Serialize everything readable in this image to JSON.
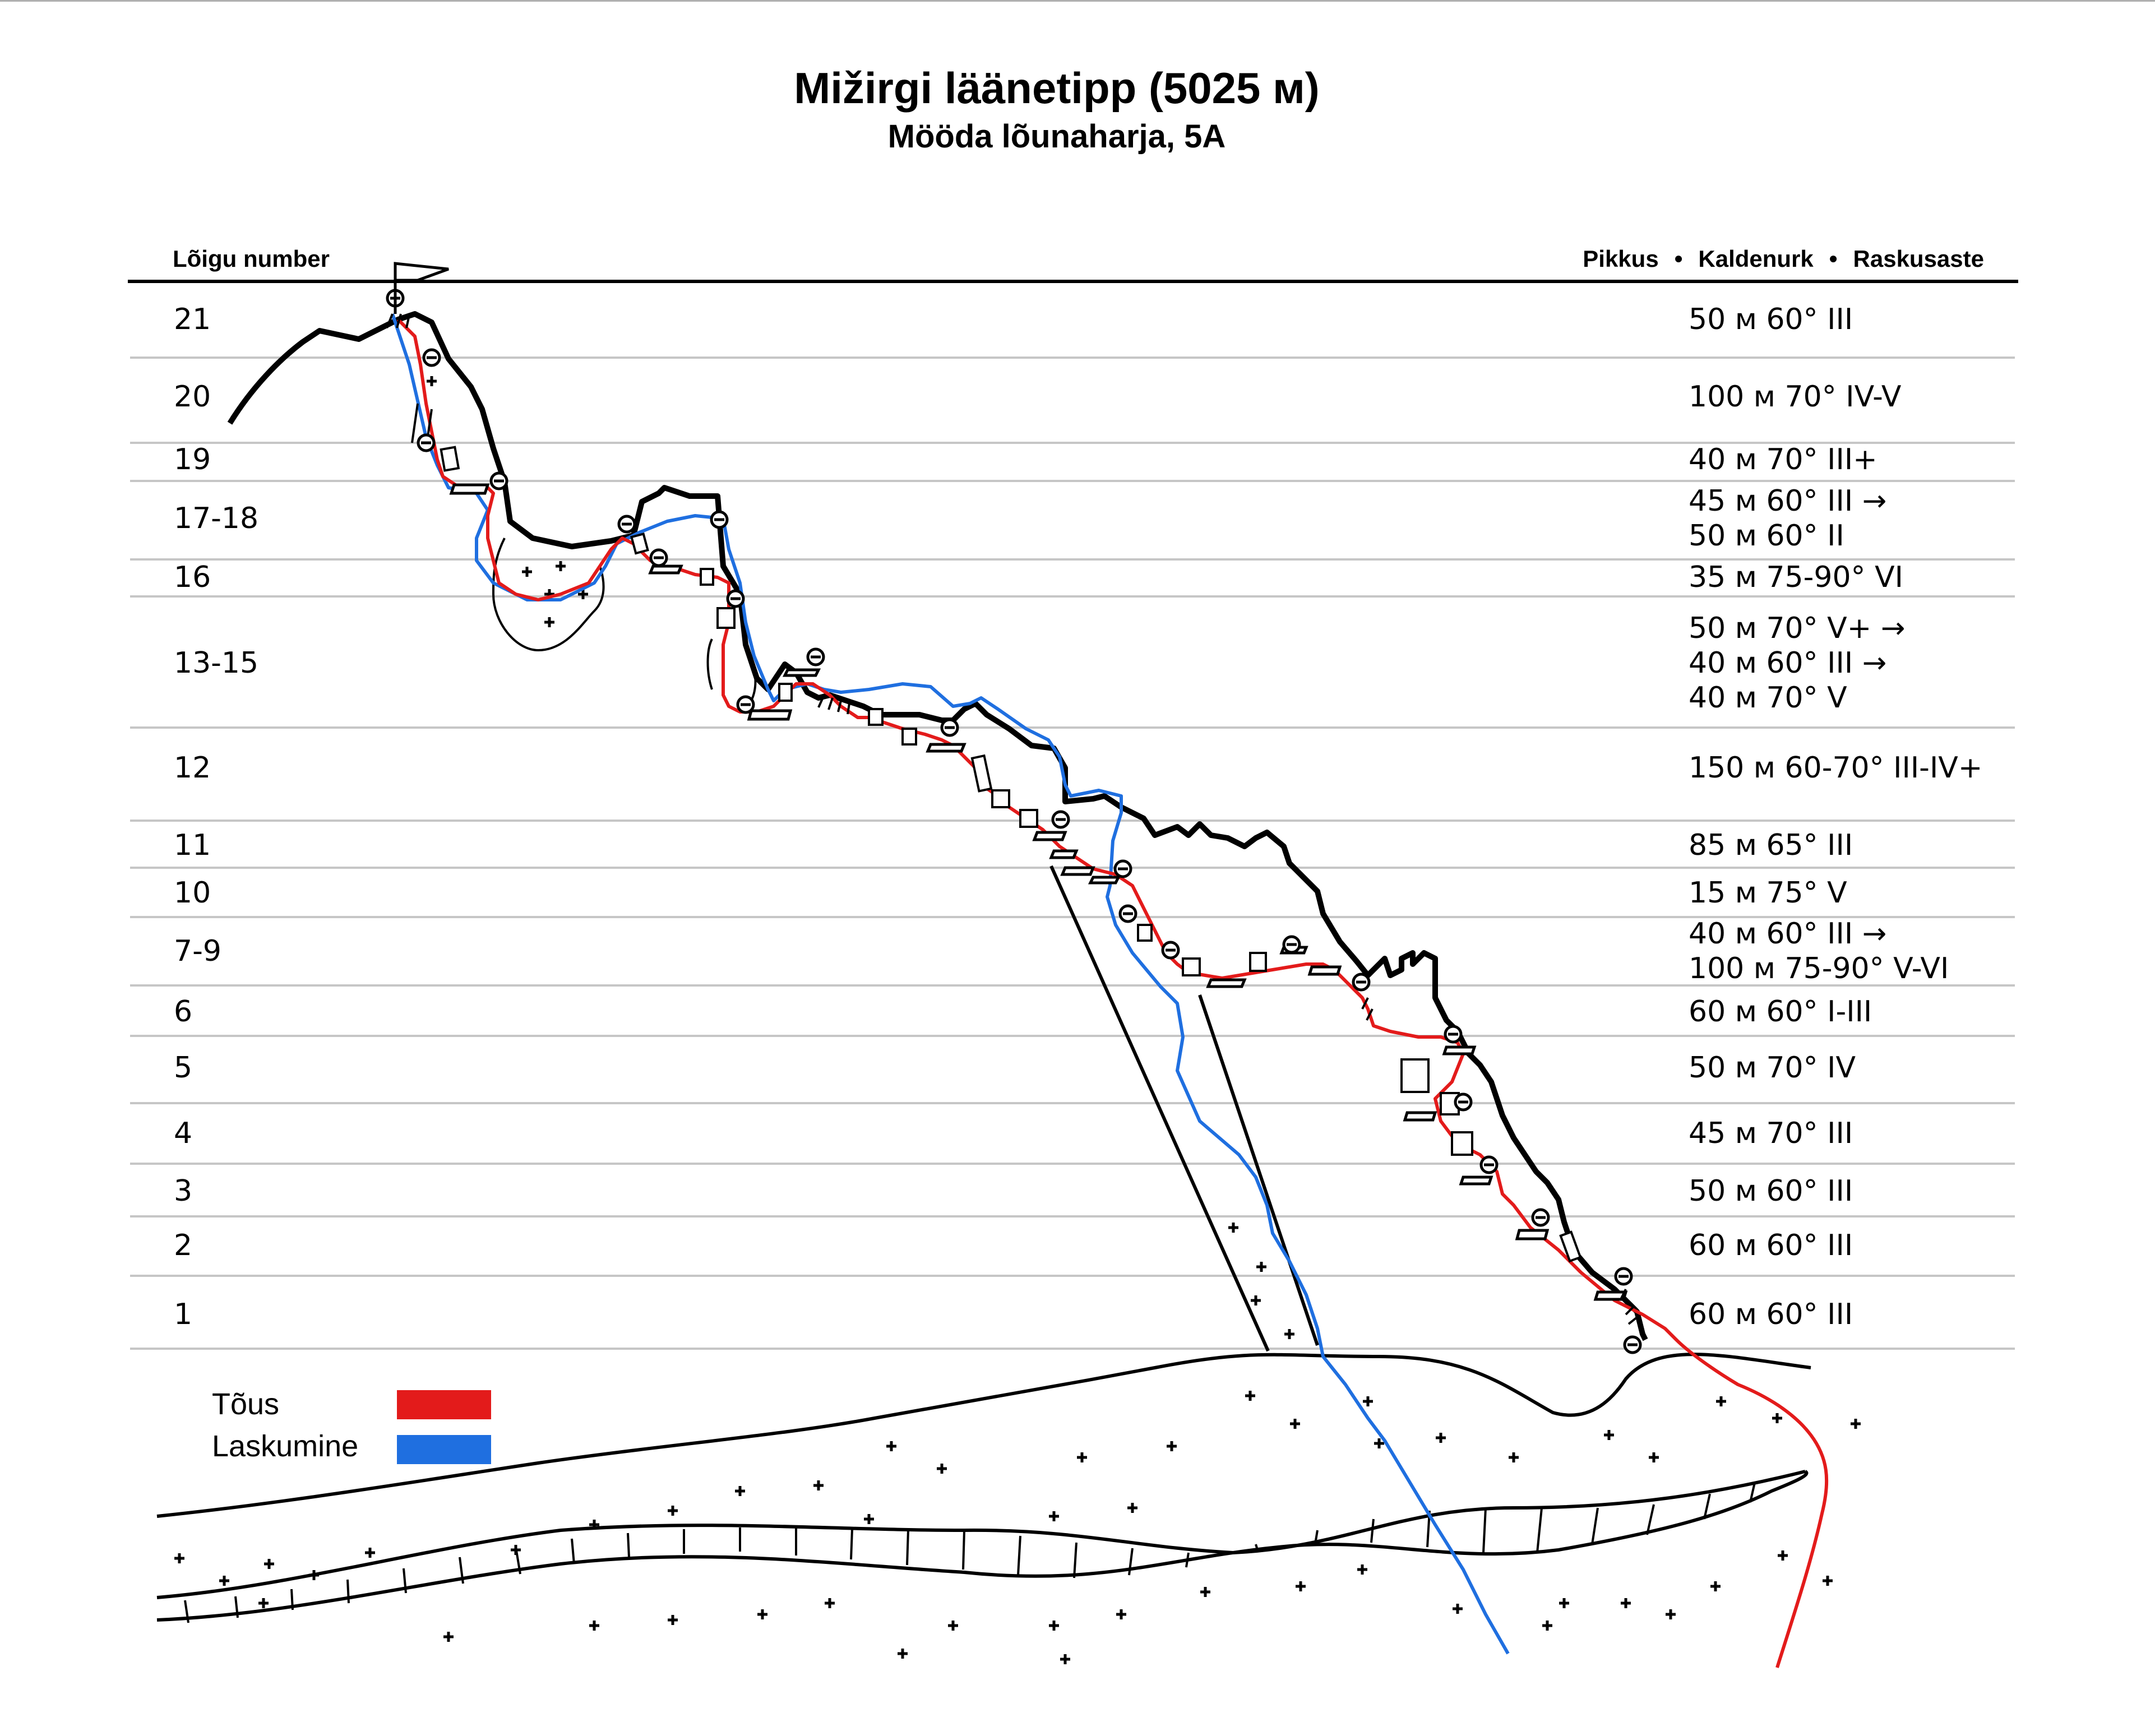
{
  "title": "Mižirgi läänetipp (5025 м)",
  "subtitle": "Mööda lõunaharja, 5A",
  "header": {
    "left": "Lõigu number",
    "right": [
      "Pikkus",
      "Kaldenurk",
      "Raskusaste"
    ],
    "separator": "•"
  },
  "rows": [
    {
      "label": "21",
      "desc": [
        "50 м 60° III"
      ]
    },
    {
      "label": "20",
      "desc": [
        "100 м 70° IV-V"
      ]
    },
    {
      "label": "19",
      "desc": [
        "40 м 70° III+"
      ]
    },
    {
      "label": "17-18",
      "desc": [
        "45 м 60° III →",
        "50 м 60° II"
      ]
    },
    {
      "label": "16",
      "desc": [
        "35 м 75-90° VI"
      ]
    },
    {
      "label": "13-15",
      "desc": [
        "50 м 70° V+ →",
        "40 м 60° III →",
        "40 м 70° V"
      ]
    },
    {
      "label": "12",
      "desc": [
        "150 м 60-70° III-IV+"
      ]
    },
    {
      "label": "11",
      "desc": [
        "85 м 65° III"
      ]
    },
    {
      "label": "10",
      "desc": [
        "15 м 75° V"
      ]
    },
    {
      "label": "7-9",
      "desc": [
        "40 м 60° III →",
        "100 м 75-90° V-VI"
      ]
    },
    {
      "label": "6",
      "desc": [
        "60 м 60° I-III"
      ]
    },
    {
      "label": "5",
      "desc": [
        "50 м 70° IV"
      ]
    },
    {
      "label": "4",
      "desc": [
        "45 м 70° III"
      ]
    },
    {
      "label": "3",
      "desc": [
        "50 м 60° III"
      ]
    },
    {
      "label": "2",
      "desc": [
        "60 м 60° III"
      ]
    },
    {
      "label": "1",
      "desc": [
        "60 м 60° III"
      ]
    }
  ],
  "legend": [
    {
      "label": "Tõus",
      "color": "#e31b1b"
    },
    {
      "label": "Laskumine",
      "color": "#1f6fe0"
    }
  ],
  "colors": {
    "ascent": "#e31b1b",
    "descent": "#1f6fe0",
    "ridge": "#000000",
    "gridline": "#c6c6c6"
  },
  "icons": [
    "summit-flag-icon",
    "piton-icon",
    "ledge-icon",
    "rock-block-icon",
    "glacier-crevasse-icon"
  ]
}
